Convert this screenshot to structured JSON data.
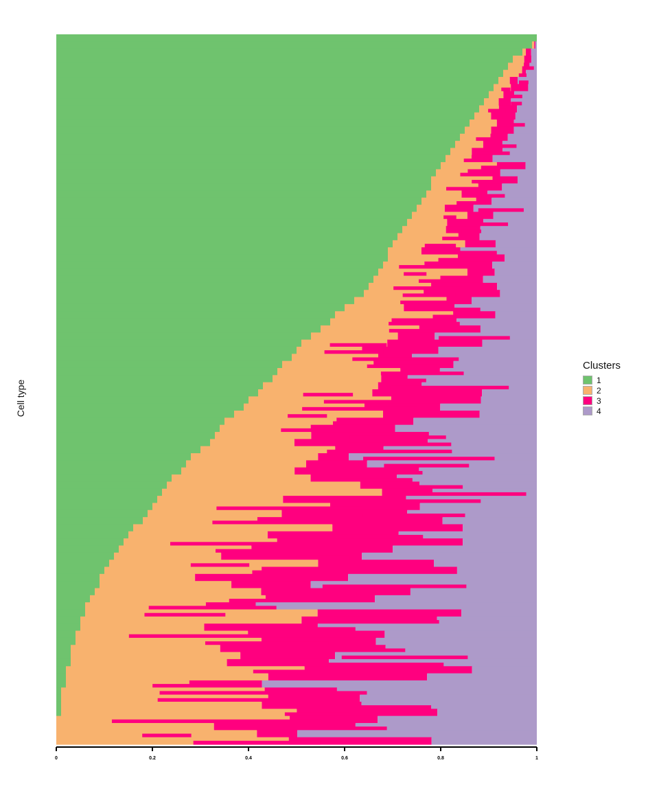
{
  "chart_data": {
    "type": "bar",
    "orientation": "horizontal",
    "stacked": true,
    "xlabel": "",
    "ylabel": "Cell type",
    "xlim": [
      0,
      1
    ],
    "x_ticks": [
      "0",
      "0.2",
      "0.4",
      "0.6",
      "0.8",
      "1"
    ],
    "legend": {
      "title": "Clusters",
      "placement": "right"
    },
    "series": [
      {
        "name": "1",
        "color": "#6FC36E"
      },
      {
        "name": "2",
        "color": "#F8B26E"
      },
      {
        "name": "3",
        "color": "#FF007F"
      },
      {
        "name": "4",
        "color": "#AD9AC9"
      }
    ],
    "cluster1_share_sorted": [
      1.0,
      0.99,
      0.97,
      0.95,
      0.94,
      0.93,
      0.92,
      0.91,
      0.9,
      0.89,
      0.88,
      0.87,
      0.86,
      0.85,
      0.84,
      0.83,
      0.82,
      0.81,
      0.8,
      0.79,
      0.78,
      0.78,
      0.77,
      0.76,
      0.75,
      0.74,
      0.73,
      0.72,
      0.71,
      0.7,
      0.69,
      0.69,
      0.68,
      0.67,
      0.66,
      0.65,
      0.64,
      0.62,
      0.6,
      0.58,
      0.57,
      0.55,
      0.53,
      0.51,
      0.5,
      0.49,
      0.47,
      0.46,
      0.45,
      0.43,
      0.42,
      0.4,
      0.39,
      0.37,
      0.35,
      0.34,
      0.33,
      0.32,
      0.3,
      0.28,
      0.27,
      0.26,
      0.24,
      0.23,
      0.22,
      0.21,
      0.2,
      0.19,
      0.18,
      0.16,
      0.15,
      0.14,
      0.13,
      0.12,
      0.11,
      0.1,
      0.09,
      0.09,
      0.08,
      0.07,
      0.06,
      0.06,
      0.05,
      0.05,
      0.04,
      0.04,
      0.03,
      0.03,
      0.03,
      0.02,
      0.02,
      0.02,
      0.01,
      0.01,
      0.01,
      0.01,
      0.0,
      0.0,
      0.0,
      0.0
    ],
    "n_rows": 100
  }
}
